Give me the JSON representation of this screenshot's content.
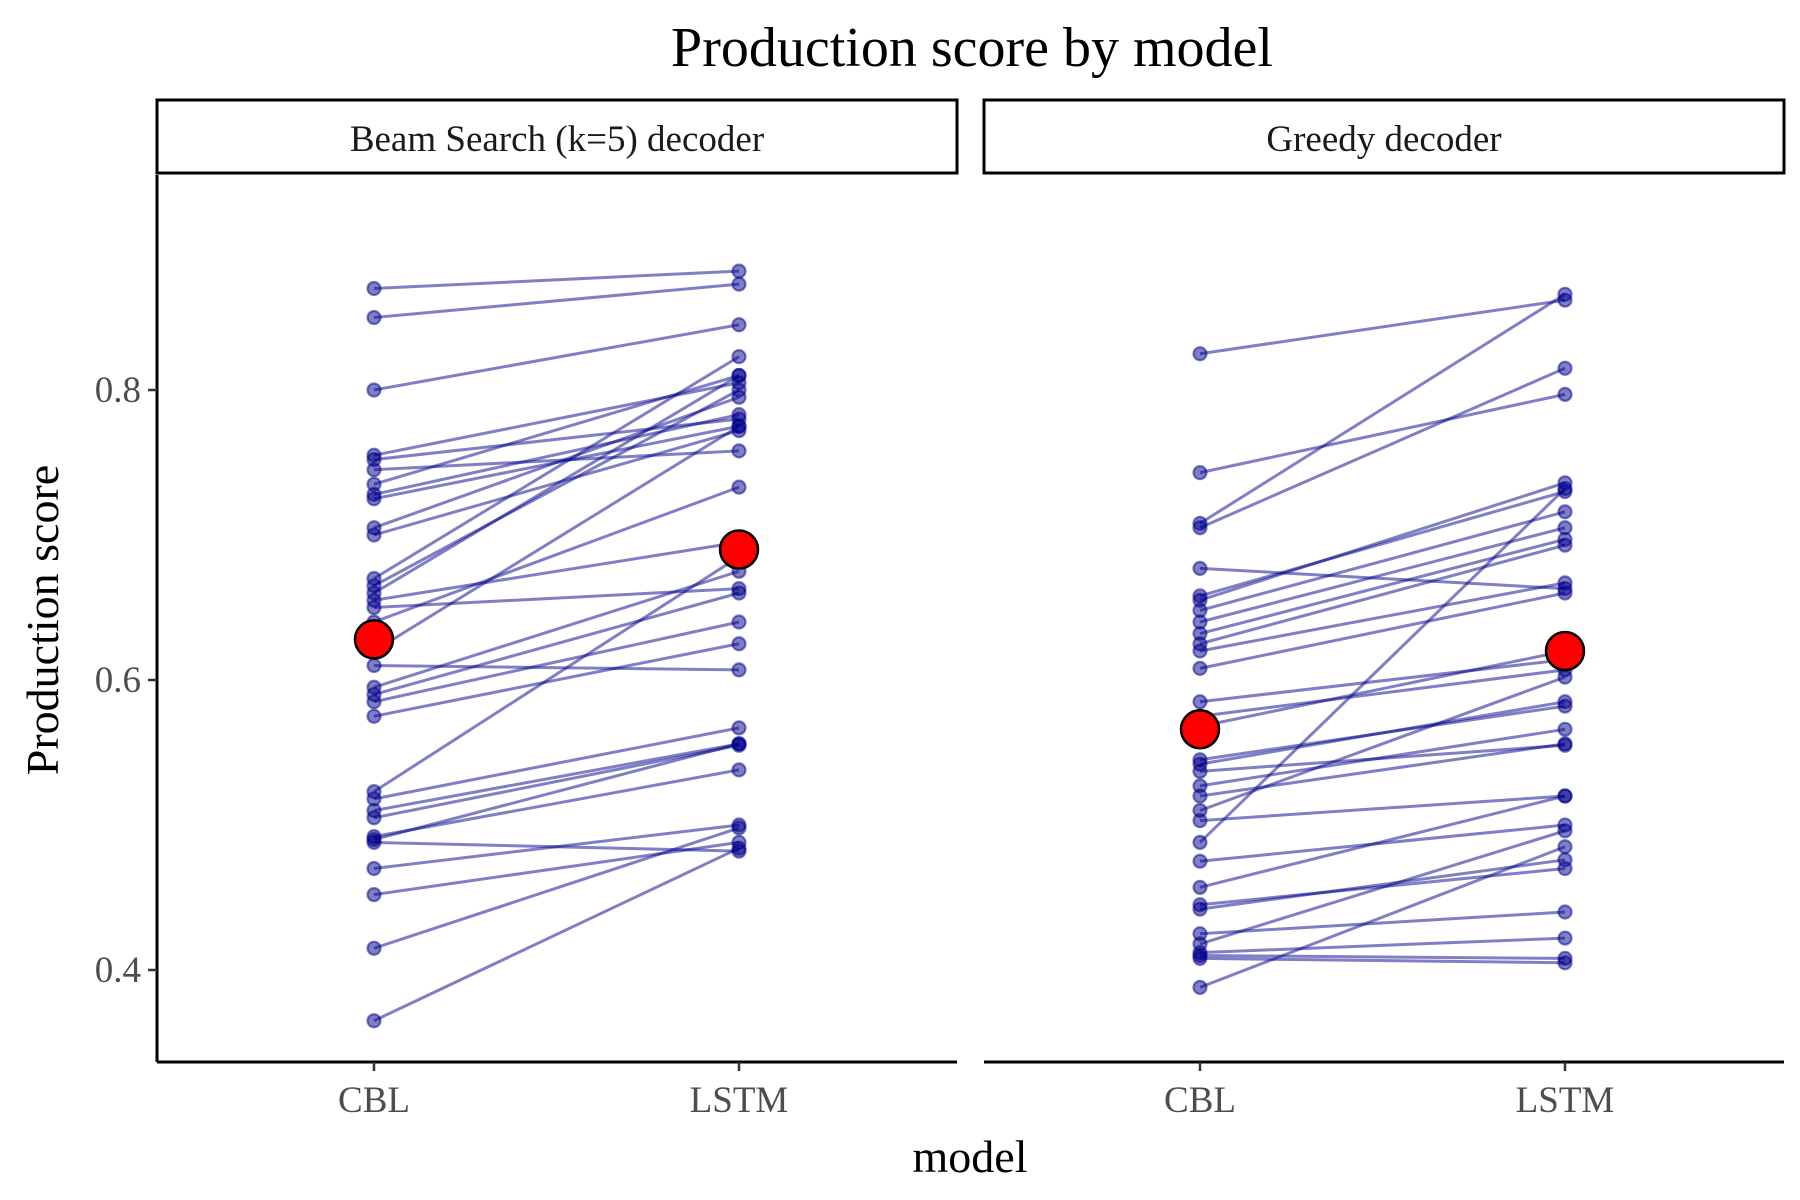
{
  "chart_data": {
    "type": "line",
    "title": "Production score by model",
    "xlabel": "model",
    "ylabel": "Production score",
    "categories": [
      "CBL",
      "LSTM"
    ],
    "y_ticks": [
      0.4,
      0.6,
      0.8
    ],
    "y_tick_labels": [
      "0.4",
      "0.6",
      "0.8"
    ],
    "ylim": [
      0.335,
      0.945
    ],
    "grid": false,
    "line_color": "#00008B",
    "mean_color": "#FF0000",
    "panels": [
      {
        "name": "Beam Search (k=5) decoder",
        "mean": [
          0.628,
          0.69
        ],
        "pairs": [
          [
            0.87,
            0.882
          ],
          [
            0.85,
            0.873
          ],
          [
            0.8,
            0.845
          ],
          [
            0.755,
            0.805
          ],
          [
            0.752,
            0.78
          ],
          [
            0.745,
            0.758
          ],
          [
            0.735,
            0.81
          ],
          [
            0.728,
            0.783
          ],
          [
            0.725,
            0.775
          ],
          [
            0.705,
            0.795
          ],
          [
            0.7,
            0.772
          ],
          [
            0.67,
            0.823
          ],
          [
            0.665,
            0.8
          ],
          [
            0.66,
            0.81
          ],
          [
            0.655,
            0.695
          ],
          [
            0.65,
            0.663
          ],
          [
            0.64,
            0.733
          ],
          [
            0.62,
            0.775
          ],
          [
            0.61,
            0.607
          ],
          [
            0.595,
            0.675
          ],
          [
            0.59,
            0.66
          ],
          [
            0.585,
            0.64
          ],
          [
            0.575,
            0.625
          ],
          [
            0.523,
            0.685
          ],
          [
            0.518,
            0.567
          ],
          [
            0.51,
            0.556
          ],
          [
            0.505,
            0.555
          ],
          [
            0.492,
            0.538
          ],
          [
            0.49,
            0.556
          ],
          [
            0.488,
            0.482
          ],
          [
            0.47,
            0.5
          ],
          [
            0.452,
            0.488
          ],
          [
            0.415,
            0.498
          ],
          [
            0.365,
            0.484
          ]
        ]
      },
      {
        "name": "Greedy decoder",
        "mean": [
          0.566,
          0.62
        ],
        "pairs": [
          [
            0.825,
            0.862
          ],
          [
            0.743,
            0.797
          ],
          [
            0.708,
            0.866
          ],
          [
            0.705,
            0.815
          ],
          [
            0.677,
            0.663
          ],
          [
            0.658,
            0.73
          ],
          [
            0.655,
            0.736
          ],
          [
            0.648,
            0.716
          ],
          [
            0.64,
            0.705
          ],
          [
            0.632,
            0.697
          ],
          [
            0.625,
            0.693
          ],
          [
            0.62,
            0.667
          ],
          [
            0.608,
            0.66
          ],
          [
            0.585,
            0.614
          ],
          [
            0.575,
            0.607
          ],
          [
            0.568,
            0.62
          ],
          [
            0.545,
            0.582
          ],
          [
            0.542,
            0.585
          ],
          [
            0.537,
            0.555
          ],
          [
            0.527,
            0.566
          ],
          [
            0.52,
            0.556
          ],
          [
            0.51,
            0.602
          ],
          [
            0.503,
            0.52
          ],
          [
            0.488,
            0.732
          ],
          [
            0.475,
            0.5
          ],
          [
            0.457,
            0.52
          ],
          [
            0.445,
            0.47
          ],
          [
            0.442,
            0.476
          ],
          [
            0.425,
            0.44
          ],
          [
            0.418,
            0.496
          ],
          [
            0.412,
            0.422
          ],
          [
            0.41,
            0.408
          ],
          [
            0.408,
            0.405
          ],
          [
            0.388,
            0.485
          ]
        ]
      }
    ]
  }
}
